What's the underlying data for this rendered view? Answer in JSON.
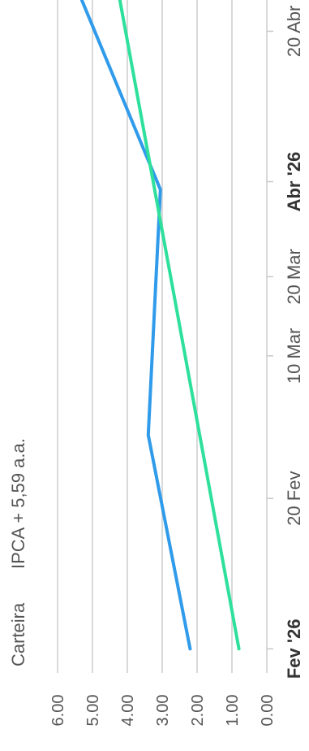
{
  "chart_data": {
    "type": "line",
    "orientation": "rotated-90-clockwise",
    "title": "",
    "xlabel": "",
    "ylabel": "",
    "ylim": [
      0,
      6
    ],
    "y_ticks": [
      "0.00",
      "1.00",
      "2.00",
      "3.00",
      "4.00",
      "5.00",
      "6.00"
    ],
    "x_ticks": [
      {
        "date": "2026-02-01",
        "label": "Fev '26",
        "bold": true
      },
      {
        "date": "2026-02-20",
        "label": "20 Fev",
        "bold": false
      },
      {
        "date": "2026-03-10",
        "label": "10 Mar",
        "bold": false
      },
      {
        "date": "2026-03-20",
        "label": "20 Mar",
        "bold": false
      },
      {
        "date": "2026-04-01",
        "label": "Abr '26",
        "bold": true
      },
      {
        "date": "2026-04-20",
        "label": "20 Abr",
        "bold": false
      }
    ],
    "x_range": [
      "2026-01-31",
      "2026-04-26"
    ],
    "grid": true,
    "legend_position": "bottom-left",
    "series": [
      {
        "name": "Carteira",
        "color": "#2f9bea",
        "points": [
          {
            "x": "2026-02-01",
            "y": 2.2
          },
          {
            "x": "2026-02-28",
            "y": 3.4
          },
          {
            "x": "2026-03-31",
            "y": 3.05
          },
          {
            "x": "2026-04-26",
            "y": 5.5
          }
        ]
      },
      {
        "name": "IPCA + 5,59 a.a.",
        "color": "#2ee09b",
        "points": [
          {
            "x": "2026-02-01",
            "y": 0.8
          },
          {
            "x": "2026-04-26",
            "y": 4.3
          }
        ]
      }
    ]
  }
}
